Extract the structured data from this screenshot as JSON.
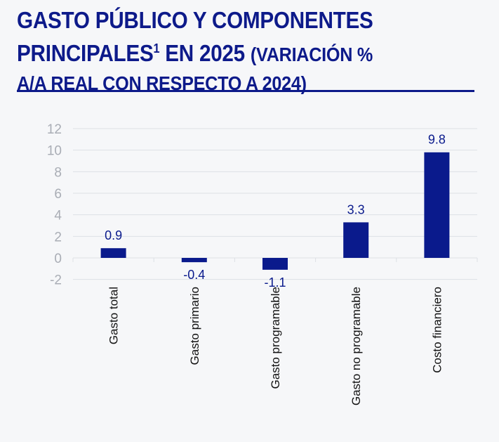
{
  "title": {
    "line1": "GASTO PÚBLICO Y COMPONENTES",
    "line2_main": "PRINCIPALES",
    "line2_sup": "1",
    "line2_rest": " EN 2025 ",
    "line2_paren": "(VARIACIÓN %",
    "line3": "A/A REAL CON RESPECTO A 2024)"
  },
  "colors": {
    "bar": "#0a1a8c",
    "title": "#0d1a8a",
    "axis_text": "#a9adb5",
    "grid": "#dde0e5"
  },
  "chart_data": {
    "type": "bar",
    "title": "GASTO PÚBLICO Y COMPONENTES PRINCIPALES1 EN 2025 (VARIACIÓN % A/A REAL CON RESPECTO A 2024)",
    "categories": [
      "Gasto total",
      "Gasto primario",
      "Gasto programable",
      "Gasto no programable",
      "Costo financiero"
    ],
    "values": [
      0.9,
      -0.4,
      -1.1,
      3.3,
      9.8
    ],
    "data_labels": [
      "0.9",
      "-0.4",
      "-1.1",
      "3.3",
      "9.8"
    ],
    "ylim": [
      -2,
      12
    ],
    "yticks": [
      "-2",
      "0",
      "2",
      "4",
      "6",
      "8",
      "10",
      "12"
    ],
    "grid": true,
    "xlabel": "",
    "ylabel": ""
  }
}
